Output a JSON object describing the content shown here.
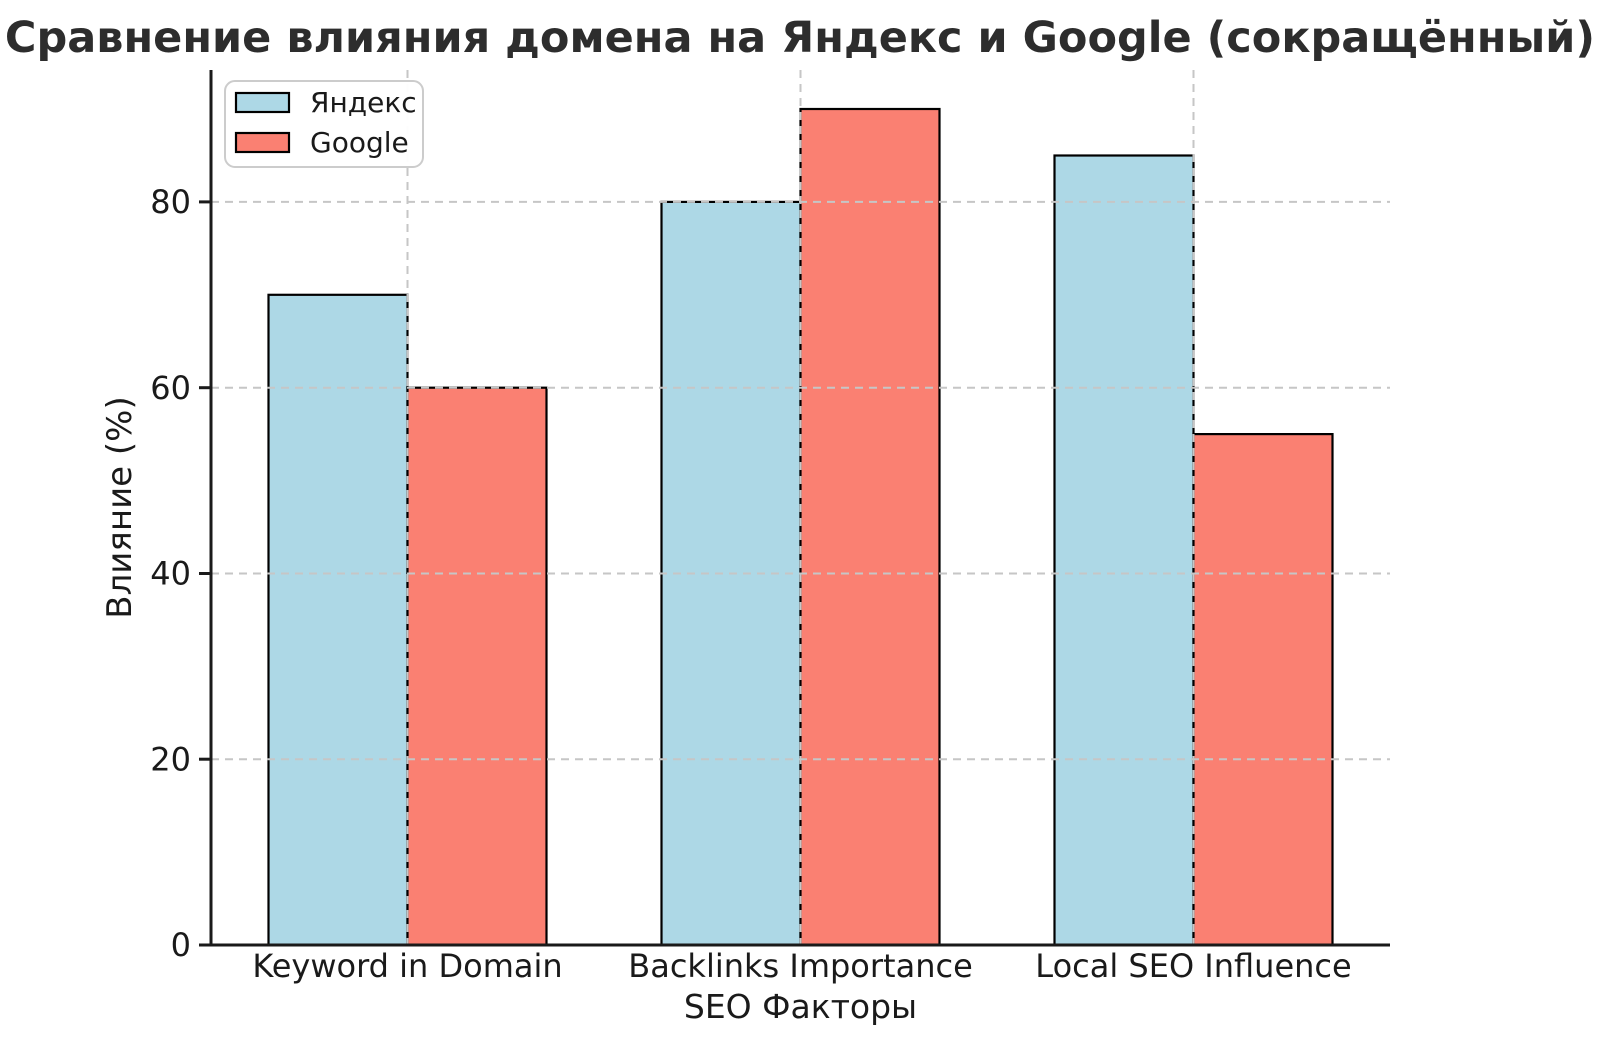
{
  "figure": {
    "background": "#ffffff"
  },
  "chart_data": {
    "type": "bar",
    "title": "Сравнение влияния домена на Яндекс и Google (сокращённый)",
    "categories": [
      "Keyword in Domain",
      "Backlinks Importance",
      "Local SEO Influence"
    ],
    "series": [
      {
        "name": "Яндекс",
        "color": "#ADD8E6",
        "values": [
          70,
          80,
          85
        ]
      },
      {
        "name": "Google",
        "color": "#FA8072",
        "values": [
          60,
          90,
          55
        ]
      }
    ],
    "xlabel": "SEO Факторы",
    "ylabel": "Влияние (%)",
    "ylim": [
      0,
      94.2
    ],
    "yticks": [
      0,
      20,
      40,
      60,
      80
    ],
    "grid": {
      "style": "dashed",
      "axes": "both",
      "color": "#c6c6c6",
      "above_bars": true
    },
    "legend": {
      "position": "upper-left",
      "border_color": "#cccccc",
      "background": "#ffffff"
    },
    "bar_edge_color": "#000000",
    "axis_color": "#1a1a1a",
    "text_color": "#1a1a1a",
    "title_color": "#2d2d2d"
  }
}
